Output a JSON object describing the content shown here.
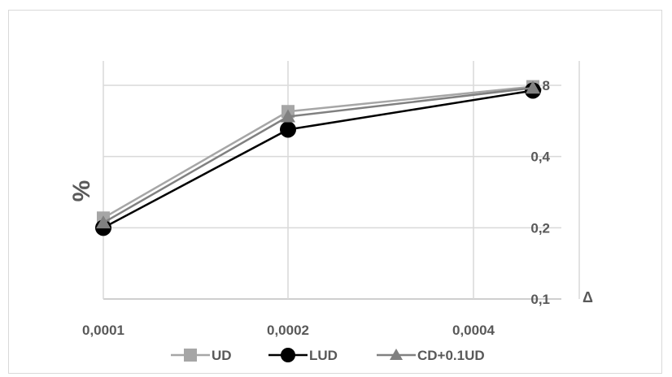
{
  "chart_data": {
    "type": "line",
    "ylabel": "%",
    "xlabel": "Δ",
    "y_scale": "log",
    "categories": [
      "0,0001",
      "0,0002",
      "0,0004"
    ],
    "y_ticks": [
      {
        "value": 0.1,
        "label": "0,1"
      },
      {
        "value": 0.2,
        "label": "0,2"
      },
      {
        "value": 0.4,
        "label": "0,4"
      },
      {
        "value": 0.8,
        "label": "0,8"
      }
    ],
    "ylim": [
      0.1,
      0.8
    ],
    "y_axis_position": "right",
    "grid": true,
    "legend_position": "bottom",
    "series": [
      {
        "name": "UD",
        "values": [
          0.22,
          0.62,
          0.79
        ],
        "color": "#a6a6a6",
        "marker": "square"
      },
      {
        "name": "LUD",
        "values": [
          0.2,
          0.52,
          0.76
        ],
        "color": "#000000",
        "marker": "circle"
      },
      {
        "name": "CD+0.1UD",
        "values": [
          0.21,
          0.59,
          0.78
        ],
        "color": "#808080",
        "marker": "triangle"
      }
    ]
  }
}
